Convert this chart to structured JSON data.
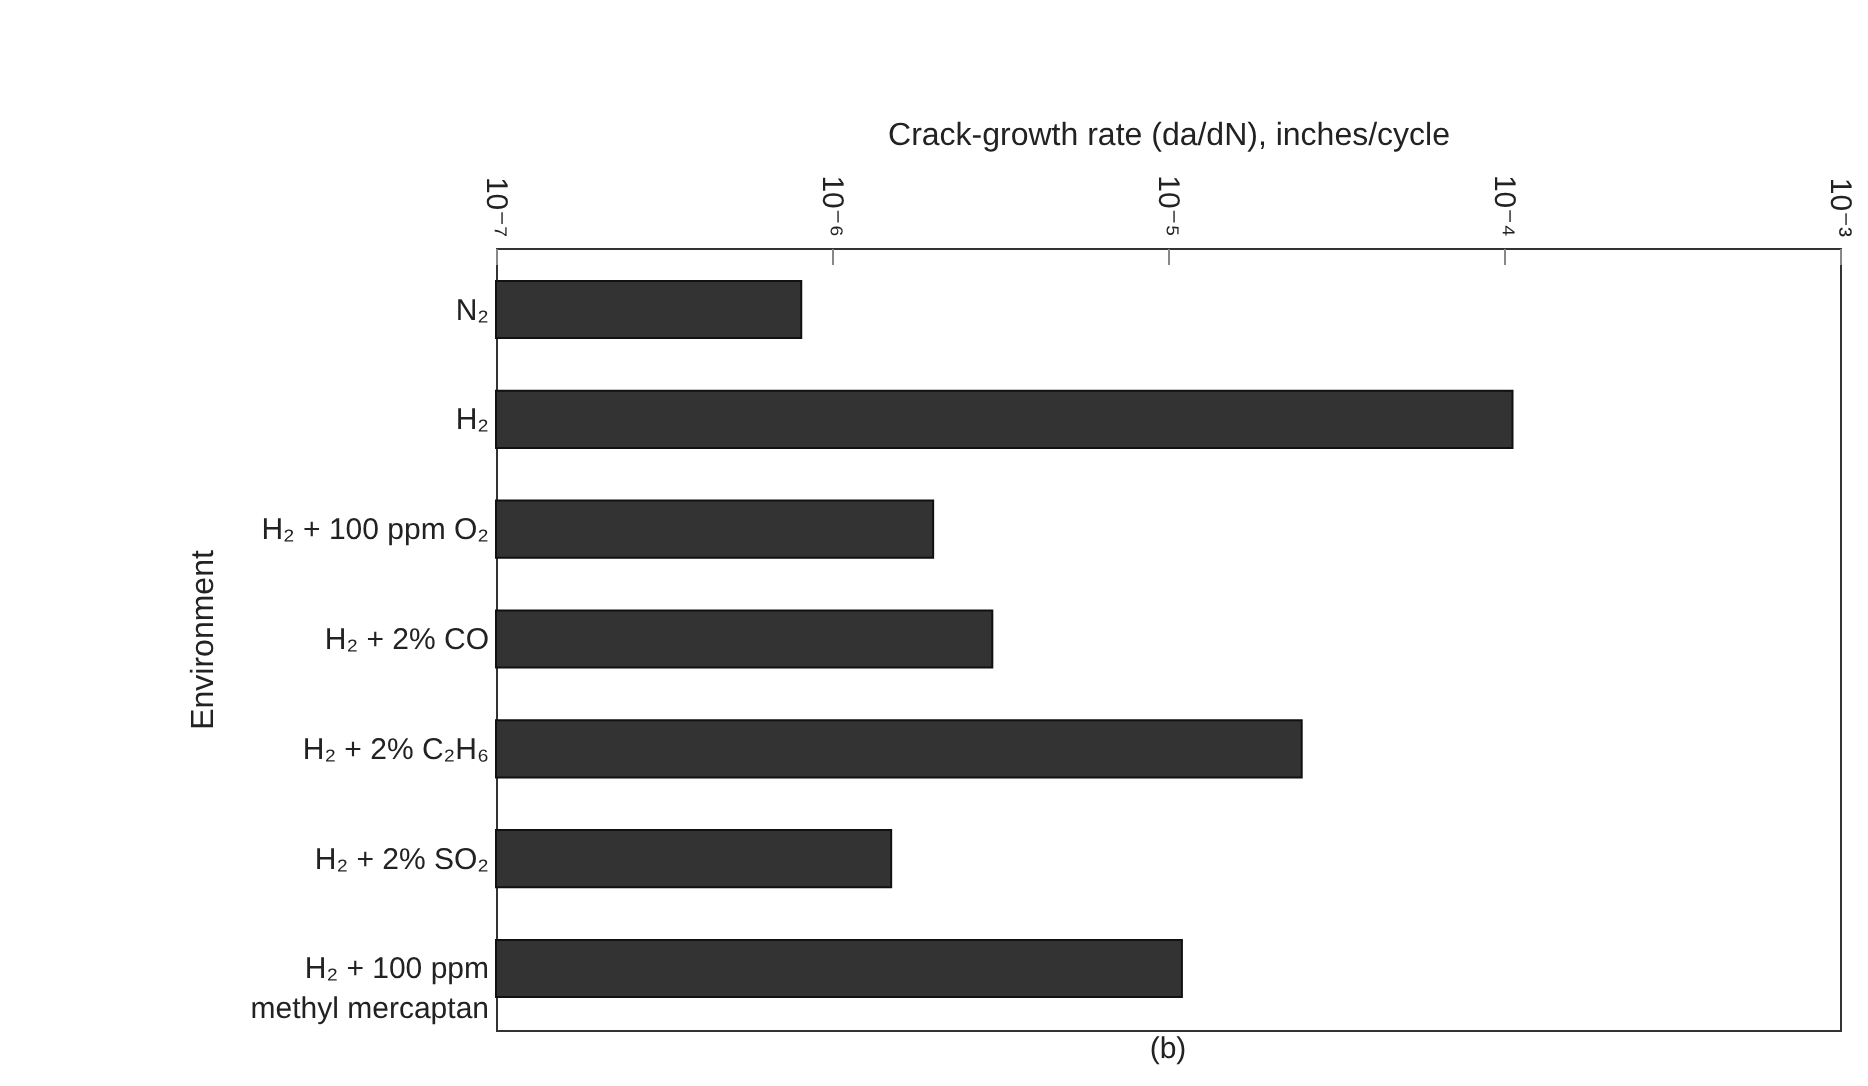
{
  "chart_data": {
    "type": "bar",
    "orientation": "horizontal",
    "xlabel": "Crack-growth rate (da/dN), inches/cycle",
    "ylabel": "Environment",
    "categories": [
      "N₂",
      "H₂",
      "H₂ + 100 ppm O₂",
      "H₂ + 2% CO",
      "H₂ + 2% C₂H₆",
      "H₂ + 2% SO₂",
      "H₂ + 100 ppm\nmethyl mercaptan"
    ],
    "values": [
      8.1e-07,
      0.000106,
      2e-06,
      3e-06,
      2.5e-05,
      1.5e-06,
      1.1e-05
    ],
    "color": "#333333",
    "log": "x",
    "xlim": [
      1e-07,
      0.001
    ],
    "xticks": [
      {
        "value": 1e-07,
        "label": "10⁻⁷"
      },
      {
        "value": 1e-06,
        "label": "10⁻⁶"
      },
      {
        "value": 1e-05,
        "label": "10⁻⁵"
      },
      {
        "value": 0.0001,
        "label": "10⁻⁴"
      },
      {
        "value": 0.001,
        "label": "10⁻³"
      }
    ],
    "grid": false,
    "annotations": [
      "(b)"
    ]
  }
}
